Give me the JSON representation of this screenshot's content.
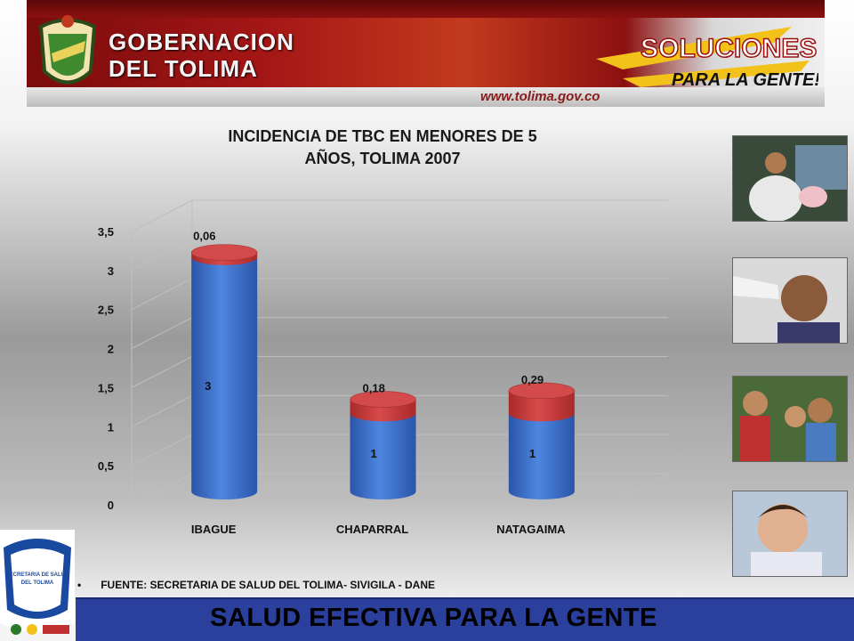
{
  "header": {
    "line1": "GOBERNACION",
    "line2": "DEL TOLIMA",
    "url": "www.tolima.gov.co",
    "slogan_line1": "SOLUCIONES",
    "slogan_line2": "PARA LA GENTE!"
  },
  "chart_data": {
    "type": "bar",
    "stacked": true,
    "title_line1": "INCIDENCIA DE TBC EN MENORES DE 5",
    "title_line2": "AÑOS, TOLIMA 2007",
    "categories": [
      "IBAGUE",
      "CHAPARRAL",
      "NATAGAIMA"
    ],
    "series": [
      {
        "values": [
          3,
          1,
          1
        ],
        "labels": [
          "3",
          "1",
          "1"
        ],
        "color": "#3b6fc9"
      },
      {
        "values": [
          0.06,
          0.18,
          0.29
        ],
        "labels": [
          "0,06",
          "0,18",
          "0,29"
        ],
        "color": "#c23a3a"
      }
    ],
    "ylim": [
      0,
      3.5
    ],
    "yticks": [
      "0",
      "0,5",
      "1",
      "1,5",
      "2",
      "2,5",
      "3",
      "3,5"
    ],
    "grid": true
  },
  "source_text": "FUENTE: SECRETARIA DE SALUD DEL TOLIMA- SIVIGILA - DANE",
  "footer_text": "SALUD EFECTIVA PARA LA GENTE",
  "logo": {
    "line1": "SECRETARIA DE SALUD",
    "line2": "DEL TOLIMA"
  },
  "colors": {
    "footer": "#2b3f9c",
    "banner": "#a51616"
  }
}
